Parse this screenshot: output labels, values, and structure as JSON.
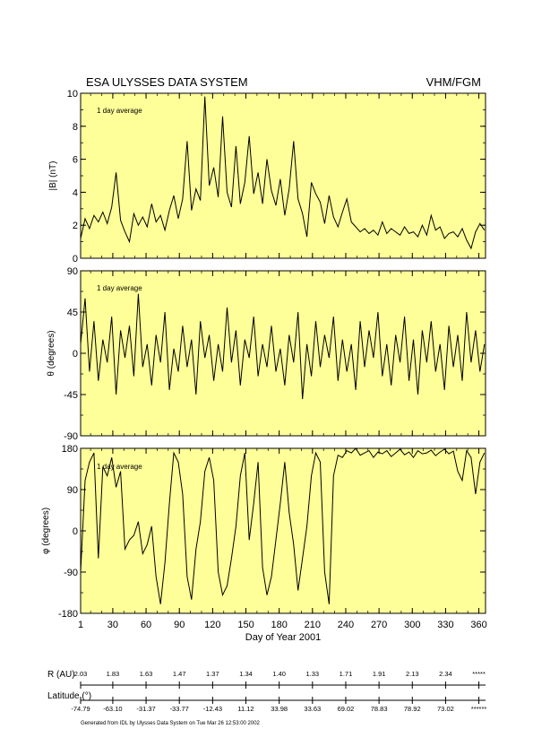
{
  "header": {
    "left_title": "ESA ULYSSES DATA SYSTEM",
    "right_title": "VHM/FGM"
  },
  "chart_data": [
    {
      "type": "line",
      "panel": "B magnitude",
      "ylabel": "|B| (nT)",
      "annotation": "1 day average",
      "ylim": [
        0,
        10
      ],
      "yticks": [
        "0",
        "2",
        "4",
        "6",
        "8",
        "10"
      ],
      "xlim": [
        1,
        366
      ],
      "x": [
        1,
        5,
        9,
        13,
        17,
        21,
        25,
        29,
        33,
        37,
        41,
        45,
        49,
        53,
        57,
        61,
        65,
        69,
        73,
        77,
        81,
        85,
        89,
        93,
        97,
        101,
        105,
        109,
        113,
        117,
        121,
        125,
        129,
        133,
        137,
        141,
        145,
        149,
        153,
        157,
        161,
        165,
        169,
        173,
        177,
        181,
        185,
        189,
        193,
        197,
        201,
        205,
        209,
        213,
        217,
        221,
        225,
        229,
        233,
        237,
        241,
        245,
        249,
        253,
        257,
        261,
        265,
        269,
        273,
        277,
        281,
        285,
        289,
        293,
        297,
        301,
        305,
        309,
        313,
        317,
        321,
        325,
        329,
        333,
        337,
        341,
        345,
        349,
        353,
        357,
        361,
        365
      ],
      "y": [
        1.2,
        2.4,
        1.8,
        2.6,
        2.2,
        2.8,
        2.1,
        3.1,
        5.2,
        2.3,
        1.6,
        1.0,
        2.7,
        2.0,
        2.5,
        1.9,
        3.3,
        2.2,
        2.6,
        1.7,
        2.9,
        3.8,
        2.4,
        3.6,
        7.1,
        2.9,
        4.2,
        3.5,
        9.8,
        4.4,
        5.5,
        3.7,
        8.6,
        4.0,
        3.1,
        6.8,
        3.3,
        4.6,
        7.4,
        3.9,
        5.2,
        3.3,
        6.0,
        4.1,
        3.2,
        4.8,
        2.6,
        4.2,
        7.1,
        3.6,
        2.7,
        1.3,
        4.6,
        3.9,
        3.4,
        2.1,
        3.8,
        2.5,
        1.9,
        2.8,
        3.6,
        2.2,
        1.9,
        1.6,
        1.8,
        1.5,
        1.7,
        1.4,
        2.2,
        1.5,
        1.8,
        1.6,
        1.4,
        1.9,
        1.5,
        1.6,
        1.3,
        2.0,
        1.4,
        2.6,
        1.7,
        1.9,
        1.2,
        1.5,
        1.6,
        1.3,
        1.8,
        1.1,
        0.6,
        1.6,
        2.1,
        1.7
      ]
    },
    {
      "type": "line",
      "panel": "theta",
      "ylabel": "θ (degrees)",
      "annotation": "1 day average",
      "ylim": [
        -90,
        90
      ],
      "yticks": [
        "-90",
        "-45",
        "0",
        "45",
        "90"
      ],
      "xlim": [
        1,
        366
      ],
      "x": [
        1,
        5,
        9,
        13,
        17,
        21,
        25,
        29,
        33,
        37,
        41,
        45,
        49,
        53,
        57,
        61,
        65,
        69,
        73,
        77,
        81,
        85,
        89,
        93,
        97,
        101,
        105,
        109,
        113,
        117,
        121,
        125,
        129,
        133,
        137,
        141,
        145,
        149,
        153,
        157,
        161,
        165,
        169,
        173,
        177,
        181,
        185,
        189,
        193,
        197,
        201,
        205,
        209,
        213,
        217,
        221,
        225,
        229,
        233,
        237,
        241,
        245,
        249,
        253,
        257,
        261,
        265,
        269,
        273,
        277,
        281,
        285,
        289,
        293,
        297,
        301,
        305,
        309,
        313,
        317,
        321,
        325,
        329,
        333,
        337,
        341,
        345,
        349,
        353,
        357,
        361,
        365
      ],
      "y": [
        10,
        60,
        -20,
        35,
        -30,
        15,
        -10,
        40,
        -45,
        25,
        -5,
        30,
        -25,
        65,
        -15,
        10,
        -35,
        20,
        -10,
        45,
        -40,
        5,
        -20,
        30,
        -15,
        15,
        -45,
        35,
        -5,
        20,
        -30,
        10,
        -20,
        50,
        -10,
        25,
        -35,
        15,
        -5,
        40,
        -25,
        10,
        -15,
        30,
        -20,
        5,
        -35,
        20,
        -10,
        45,
        -50,
        10,
        -25,
        35,
        -15,
        20,
        -5,
        40,
        -30,
        15,
        -20,
        10,
        -40,
        35,
        -15,
        25,
        -5,
        45,
        -25,
        10,
        -35,
        20,
        -10,
        40,
        -30,
        15,
        -45,
        25,
        -10,
        35,
        -20,
        10,
        -40,
        30,
        -15,
        20,
        -30,
        45,
        -10,
        25,
        -20,
        10
      ]
    },
    {
      "type": "line",
      "panel": "phi",
      "ylabel": "φ (degrees)",
      "annotation": "1 day average",
      "ylim": [
        -180,
        180
      ],
      "yticks": [
        "-180",
        "-90",
        "0",
        "90",
        "180"
      ],
      "xlim": [
        1,
        366
      ],
      "xlabel": "Day of Year 2001",
      "xticks": [
        "1",
        "30",
        "60",
        "90",
        "120",
        "150",
        "180",
        "210",
        "240",
        "270",
        "300",
        "330",
        "360"
      ],
      "x": [
        1,
        5,
        9,
        13,
        17,
        21,
        25,
        29,
        33,
        37,
        41,
        45,
        49,
        53,
        57,
        61,
        65,
        69,
        73,
        77,
        81,
        85,
        89,
        93,
        97,
        101,
        105,
        109,
        113,
        117,
        121,
        125,
        129,
        133,
        137,
        141,
        145,
        149,
        153,
        157,
        161,
        165,
        169,
        173,
        177,
        181,
        185,
        189,
        193,
        197,
        201,
        205,
        209,
        213,
        217,
        221,
        225,
        229,
        233,
        237,
        241,
        245,
        249,
        253,
        257,
        261,
        265,
        269,
        273,
        277,
        281,
        285,
        289,
        293,
        297,
        301,
        305,
        309,
        313,
        317,
        321,
        325,
        329,
        333,
        337,
        341,
        345,
        349,
        353,
        357,
        361,
        365
      ],
      "y": [
        -90,
        110,
        150,
        170,
        -60,
        140,
        120,
        160,
        95,
        130,
        -40,
        -20,
        -10,
        20,
        -50,
        -30,
        10,
        -100,
        -160,
        -70,
        60,
        170,
        150,
        80,
        -100,
        -150,
        -40,
        20,
        130,
        160,
        110,
        -90,
        -140,
        -120,
        -60,
        10,
        120,
        170,
        -20,
        60,
        150,
        -80,
        -140,
        -100,
        -20,
        60,
        150,
        40,
        -30,
        -130,
        -60,
        10,
        120,
        170,
        150,
        -90,
        -160,
        120,
        165,
        160,
        175,
        170,
        180,
        165,
        170,
        175,
        160,
        172,
        168,
        175,
        162,
        170,
        178,
        166,
        172,
        160,
        175,
        168,
        170,
        176,
        164,
        172,
        178,
        168,
        174,
        130,
        110,
        175,
        160,
        80,
        150,
        170
      ]
    }
  ],
  "ephemeris": {
    "r_label": "R (AU)",
    "lat_label": "Latitude (°)",
    "r_values": [
      "2.03",
      "1.83",
      "1.63",
      "1.47",
      "1.37",
      "1.34",
      "1.40",
      "1.33",
      "1.71",
      "1.91",
      "2.13",
      "2.34",
      "*****"
    ],
    "lat_values": [
      "-74.79",
      "-63.10",
      "-31.37",
      "-33.77",
      "-12.43",
      "11.12",
      "33.98",
      "33.63",
      "69.02",
      "78.83",
      "78.92",
      "73.02",
      "******"
    ]
  },
  "footer": {
    "generated": "Generated from IDL by Ulysses Data System on Tue Mar 26 12:53:00 2002"
  },
  "colors": {
    "panel_bg": "#ffff99",
    "line": "#000000"
  }
}
